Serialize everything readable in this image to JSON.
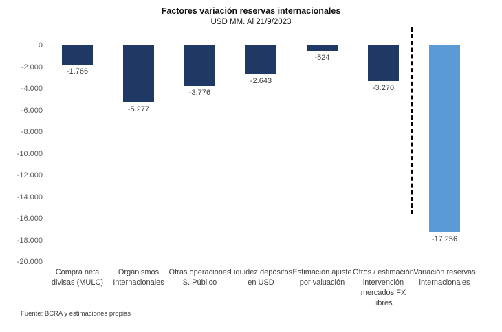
{
  "header": {
    "title": "Factores variación  reservas internacionales",
    "subtitle": "USD MM. Al 21/9/2023"
  },
  "source_note": "Fuente: BCRA y estimaciones propias",
  "colors": {
    "bar_dark_navy": "#1F3864",
    "bar_light_blue": "#5B9BD5",
    "zero_line_gray": "#C9C9C9",
    "separator_black": "#000000",
    "label_gray": "#404040",
    "tick_gray": "#595959"
  },
  "chart_data": {
    "type": "bar",
    "title": "Factores variación  reservas internacionales",
    "subtitle": "USD MM. Al 21/9/2023",
    "categories": [
      "Compra neta divisas (MULC)",
      "Organismos Internacionales",
      "Otras operaciones S. Público",
      "Liquidez depósitos en USD",
      "Estimación ajuste por valuación",
      "Otros / estimación intervención mercados FX libres",
      "Variación reservas internacionales"
    ],
    "values": [
      -1766,
      -5277,
      -3776,
      -2643,
      -524,
      -3270,
      -17256
    ],
    "data_labels": [
      "-1.766",
      "-5.277",
      "-3.776",
      "-2.643",
      "-524",
      "-3.270",
      "-17.256"
    ],
    "bar_colors": [
      "#1F3864",
      "#1F3864",
      "#1F3864",
      "#1F3864",
      "#1F3864",
      "#1F3864",
      "#5B9BD5"
    ],
    "xlabel": "",
    "ylabel": "",
    "ylim": [
      -20000,
      0
    ],
    "ytick_step": 2000,
    "ytick_labels": [
      "0",
      "-2.000",
      "-4.000",
      "-6.000",
      "-8.000",
      "-10.000",
      "-12.000",
      "-14.000",
      "-16.000",
      "-18.000",
      "-20.000"
    ],
    "grid": "off",
    "legend": "none",
    "separator_before_category": "Variación reservas internacionales",
    "separator_after_index": 5
  }
}
